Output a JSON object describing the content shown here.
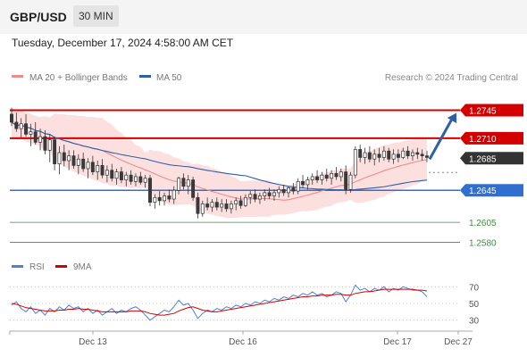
{
  "header": {
    "pair": "GBP/USD",
    "timeframe": "30 MIN",
    "datetime": "Tuesday, December 17, 2024 4:58:00 AM CET"
  },
  "legend": {
    "ma20_label": "MA 20 + Bollinger Bands",
    "ma50_label": "MA 50",
    "credit": "Research © 2024 Trading Central",
    "rsi_label": "RSI",
    "rsi9_label": "9MA"
  },
  "colors": {
    "bull": "#3a3a3a",
    "bear": "#3a3a3a",
    "ma20": "#ef8b8b",
    "bollinger_fill": "#fbd5d5",
    "ma50": "#2f5fa6",
    "resistance": "#d40000",
    "current": "#333333",
    "support_primary": "#2f6fd0",
    "support_secondary": "#3c8f3c",
    "rsi": "#4f7fd6",
    "rsi9": "#d40000",
    "arrow": "#2f5fa6"
  },
  "chart_data": [
    {
      "type": "candlestick",
      "title": "GBP/USD",
      "x_labels": [
        "Dec 13",
        "Dec 16",
        "Dec 17",
        "Dec 27"
      ],
      "ylim": [
        1.2565,
        1.276
      ],
      "current_price": 1.2685,
      "levels": [
        {
          "value": 1.2745,
          "label": "1.2745",
          "kind": "resistance"
        },
        {
          "value": 1.271,
          "label": "1.2710",
          "kind": "resistance"
        },
        {
          "value": 1.2685,
          "label": "1.2685",
          "kind": "current"
        },
        {
          "value": 1.2645,
          "label": "1.2645",
          "kind": "support_primary"
        },
        {
          "value": 1.2605,
          "label": "1.2605",
          "kind": "support_secondary"
        },
        {
          "value": 1.258,
          "label": "1.2580",
          "kind": "support_secondary"
        }
      ],
      "candles": [
        [
          1.274,
          1.2748,
          1.2725,
          1.273
        ],
        [
          1.273,
          1.2742,
          1.2718,
          1.2722
        ],
        [
          1.2722,
          1.2735,
          1.271,
          1.2728
        ],
        [
          1.2728,
          1.274,
          1.2712,
          1.2715
        ],
        [
          1.2715,
          1.2728,
          1.27,
          1.2718
        ],
        [
          1.2718,
          1.273,
          1.2702,
          1.2705
        ],
        [
          1.2705,
          1.2722,
          1.2695,
          1.2712
        ],
        [
          1.2712,
          1.272,
          1.269,
          1.2695
        ],
        [
          1.2695,
          1.2715,
          1.268,
          1.2708
        ],
        [
          1.2708,
          1.2712,
          1.267,
          1.2678
        ],
        [
          1.2678,
          1.27,
          1.2665,
          1.2692
        ],
        [
          1.2692,
          1.2702,
          1.2675,
          1.2682
        ],
        [
          1.2682,
          1.2695,
          1.267,
          1.2688
        ],
        [
          1.2688,
          1.2695,
          1.2672,
          1.2676
        ],
        [
          1.2676,
          1.269,
          1.2665,
          1.2684
        ],
        [
          1.2684,
          1.2692,
          1.2668,
          1.2672
        ],
        [
          1.2672,
          1.2685,
          1.266,
          1.268
        ],
        [
          1.268,
          1.2688,
          1.2664,
          1.2668
        ],
        [
          1.2668,
          1.2682,
          1.2658,
          1.2676
        ],
        [
          1.2676,
          1.2684,
          1.266,
          1.2664
        ],
        [
          1.2664,
          1.2676,
          1.2655,
          1.267
        ],
        [
          1.267,
          1.2678,
          1.2656,
          1.266
        ],
        [
          1.266,
          1.2672,
          1.2652,
          1.2668
        ],
        [
          1.2668,
          1.2674,
          1.2654,
          1.2658
        ],
        [
          1.2658,
          1.2668,
          1.265,
          1.2664
        ],
        [
          1.2664,
          1.267,
          1.2652,
          1.2656
        ],
        [
          1.2656,
          1.2666,
          1.265,
          1.2662
        ],
        [
          1.2662,
          1.2668,
          1.2652,
          1.2655
        ],
        [
          1.2655,
          1.2664,
          1.2648,
          1.266
        ],
        [
          1.266,
          1.2664,
          1.2625,
          1.263
        ],
        [
          1.263,
          1.264,
          1.2622,
          1.2636
        ],
        [
          1.2636,
          1.2644,
          1.2626,
          1.2632
        ],
        [
          1.2632,
          1.2642,
          1.2626,
          1.2638
        ],
        [
          1.2638,
          1.2646,
          1.263,
          1.2634
        ],
        [
          1.2634,
          1.265,
          1.2628,
          1.2645
        ],
        [
          1.2645,
          1.2662,
          1.264,
          1.266
        ],
        [
          1.266,
          1.2666,
          1.2646,
          1.265
        ],
        [
          1.265,
          1.2664,
          1.264,
          1.2658
        ],
        [
          1.2658,
          1.2662,
          1.2632,
          1.2636
        ],
        [
          1.2636,
          1.2642,
          1.261,
          1.2616
        ],
        [
          1.2616,
          1.2632,
          1.2612,
          1.2628
        ],
        [
          1.2628,
          1.2636,
          1.262,
          1.2624
        ],
        [
          1.2624,
          1.2634,
          1.2618,
          1.263
        ],
        [
          1.263,
          1.2636,
          1.262,
          1.2624
        ],
        [
          1.2624,
          1.2634,
          1.2618,
          1.2628
        ],
        [
          1.2628,
          1.2634,
          1.2618,
          1.2622
        ],
        [
          1.2622,
          1.2632,
          1.2616,
          1.2628
        ],
        [
          1.2628,
          1.2636,
          1.262,
          1.2632
        ],
        [
          1.2632,
          1.2638,
          1.2622,
          1.2626
        ],
        [
          1.2626,
          1.264,
          1.2624,
          1.2636
        ],
        [
          1.2636,
          1.2644,
          1.2628,
          1.264
        ],
        [
          1.264,
          1.2646,
          1.263,
          1.2634
        ],
        [
          1.2634,
          1.2642,
          1.2628,
          1.2638
        ],
        [
          1.2638,
          1.2646,
          1.2632,
          1.2642
        ],
        [
          1.2642,
          1.2648,
          1.2634,
          1.2638
        ],
        [
          1.2638,
          1.2646,
          1.2632,
          1.2642
        ],
        [
          1.2642,
          1.265,
          1.2636,
          1.2646
        ],
        [
          1.2646,
          1.2652,
          1.2638,
          1.2642
        ],
        [
          1.2642,
          1.265,
          1.2636,
          1.2648
        ],
        [
          1.2648,
          1.2654,
          1.264,
          1.2644
        ],
        [
          1.2644,
          1.266,
          1.264,
          1.2656
        ],
        [
          1.2656,
          1.2664,
          1.2648,
          1.2652
        ],
        [
          1.2652,
          1.2662,
          1.2646,
          1.2658
        ],
        [
          1.2658,
          1.2666,
          1.2652,
          1.2662
        ],
        [
          1.2662,
          1.267,
          1.2654,
          1.2658
        ],
        [
          1.2658,
          1.2668,
          1.2652,
          1.2664
        ],
        [
          1.2664,
          1.2672,
          1.2656,
          1.266
        ],
        [
          1.266,
          1.267,
          1.2652,
          1.2666
        ],
        [
          1.2666,
          1.2674,
          1.2658,
          1.2662
        ],
        [
          1.2662,
          1.2672,
          1.2656,
          1.2668
        ],
        [
          1.2668,
          1.2676,
          1.264,
          1.2646
        ],
        [
          1.2646,
          1.2668,
          1.2642,
          1.2664
        ],
        [
          1.2664,
          1.27,
          1.266,
          1.2696
        ],
        [
          1.2696,
          1.2702,
          1.268,
          1.2686
        ],
        [
          1.2686,
          1.2698,
          1.2678,
          1.2692
        ],
        [
          1.2692,
          1.27,
          1.268,
          1.2684
        ],
        [
          1.2684,
          1.2696,
          1.2676,
          1.269
        ],
        [
          1.269,
          1.2698,
          1.268,
          1.2686
        ],
        [
          1.2686,
          1.27,
          1.2682,
          1.2694
        ],
        [
          1.2694,
          1.2698,
          1.268,
          1.2684
        ],
        [
          1.2684,
          1.2696,
          1.2678,
          1.269
        ],
        [
          1.269,
          1.2696,
          1.268,
          1.2686
        ],
        [
          1.2686,
          1.2698,
          1.2684,
          1.2694
        ],
        [
          1.2694,
          1.27,
          1.2684,
          1.2688
        ],
        [
          1.2688,
          1.2696,
          1.2682,
          1.2692
        ],
        [
          1.2692,
          1.2698,
          1.2684,
          1.269
        ],
        [
          1.269,
          1.2696,
          1.2682,
          1.2688
        ],
        [
          1.2688,
          1.2694,
          1.268,
          1.2686
        ]
      ],
      "rsi": {
        "ylim": [
          20,
          80
        ],
        "ticks": [
          70,
          50,
          30
        ],
        "rsi_values": [
          48,
          52,
          44,
          40,
          46,
          38,
          42,
          36,
          44,
          40,
          46,
          42,
          48,
          44,
          46,
          40,
          44,
          38,
          42,
          36,
          40,
          44,
          38,
          42,
          40,
          44,
          46,
          42,
          36,
          30,
          34,
          38,
          42,
          40,
          46,
          54,
          48,
          50,
          42,
          32,
          38,
          42,
          40,
          44,
          42,
          46,
          44,
          48,
          46,
          50,
          48,
          52,
          50,
          54,
          52,
          56,
          54,
          58,
          56,
          60,
          58,
          62,
          60,
          64,
          60,
          62,
          58,
          60,
          64,
          62,
          52,
          60,
          72,
          66,
          68,
          64,
          68,
          66,
          70,
          64,
          68,
          66,
          70,
          68,
          66,
          66,
          64,
          58
        ],
        "rsi9_values": [
          50,
          49,
          47,
          45,
          44,
          43,
          42,
          41,
          41,
          41,
          42,
          42,
          43,
          43,
          44,
          43,
          43,
          42,
          41,
          40,
          40,
          40,
          40,
          40,
          40,
          41,
          41,
          41,
          40,
          38,
          37,
          36,
          36,
          37,
          38,
          41,
          43,
          45,
          46,
          44,
          42,
          41,
          40,
          40,
          41,
          42,
          43,
          44,
          45,
          46,
          47,
          48,
          49,
          50,
          51,
          52,
          53,
          54,
          55,
          56,
          57,
          58,
          58,
          59,
          59,
          60,
          60,
          60,
          61,
          61,
          60,
          60,
          62,
          63,
          64,
          64,
          65,
          66,
          67,
          67,
          67,
          67,
          67,
          67,
          67,
          66,
          66,
          65
        ]
      }
    }
  ]
}
